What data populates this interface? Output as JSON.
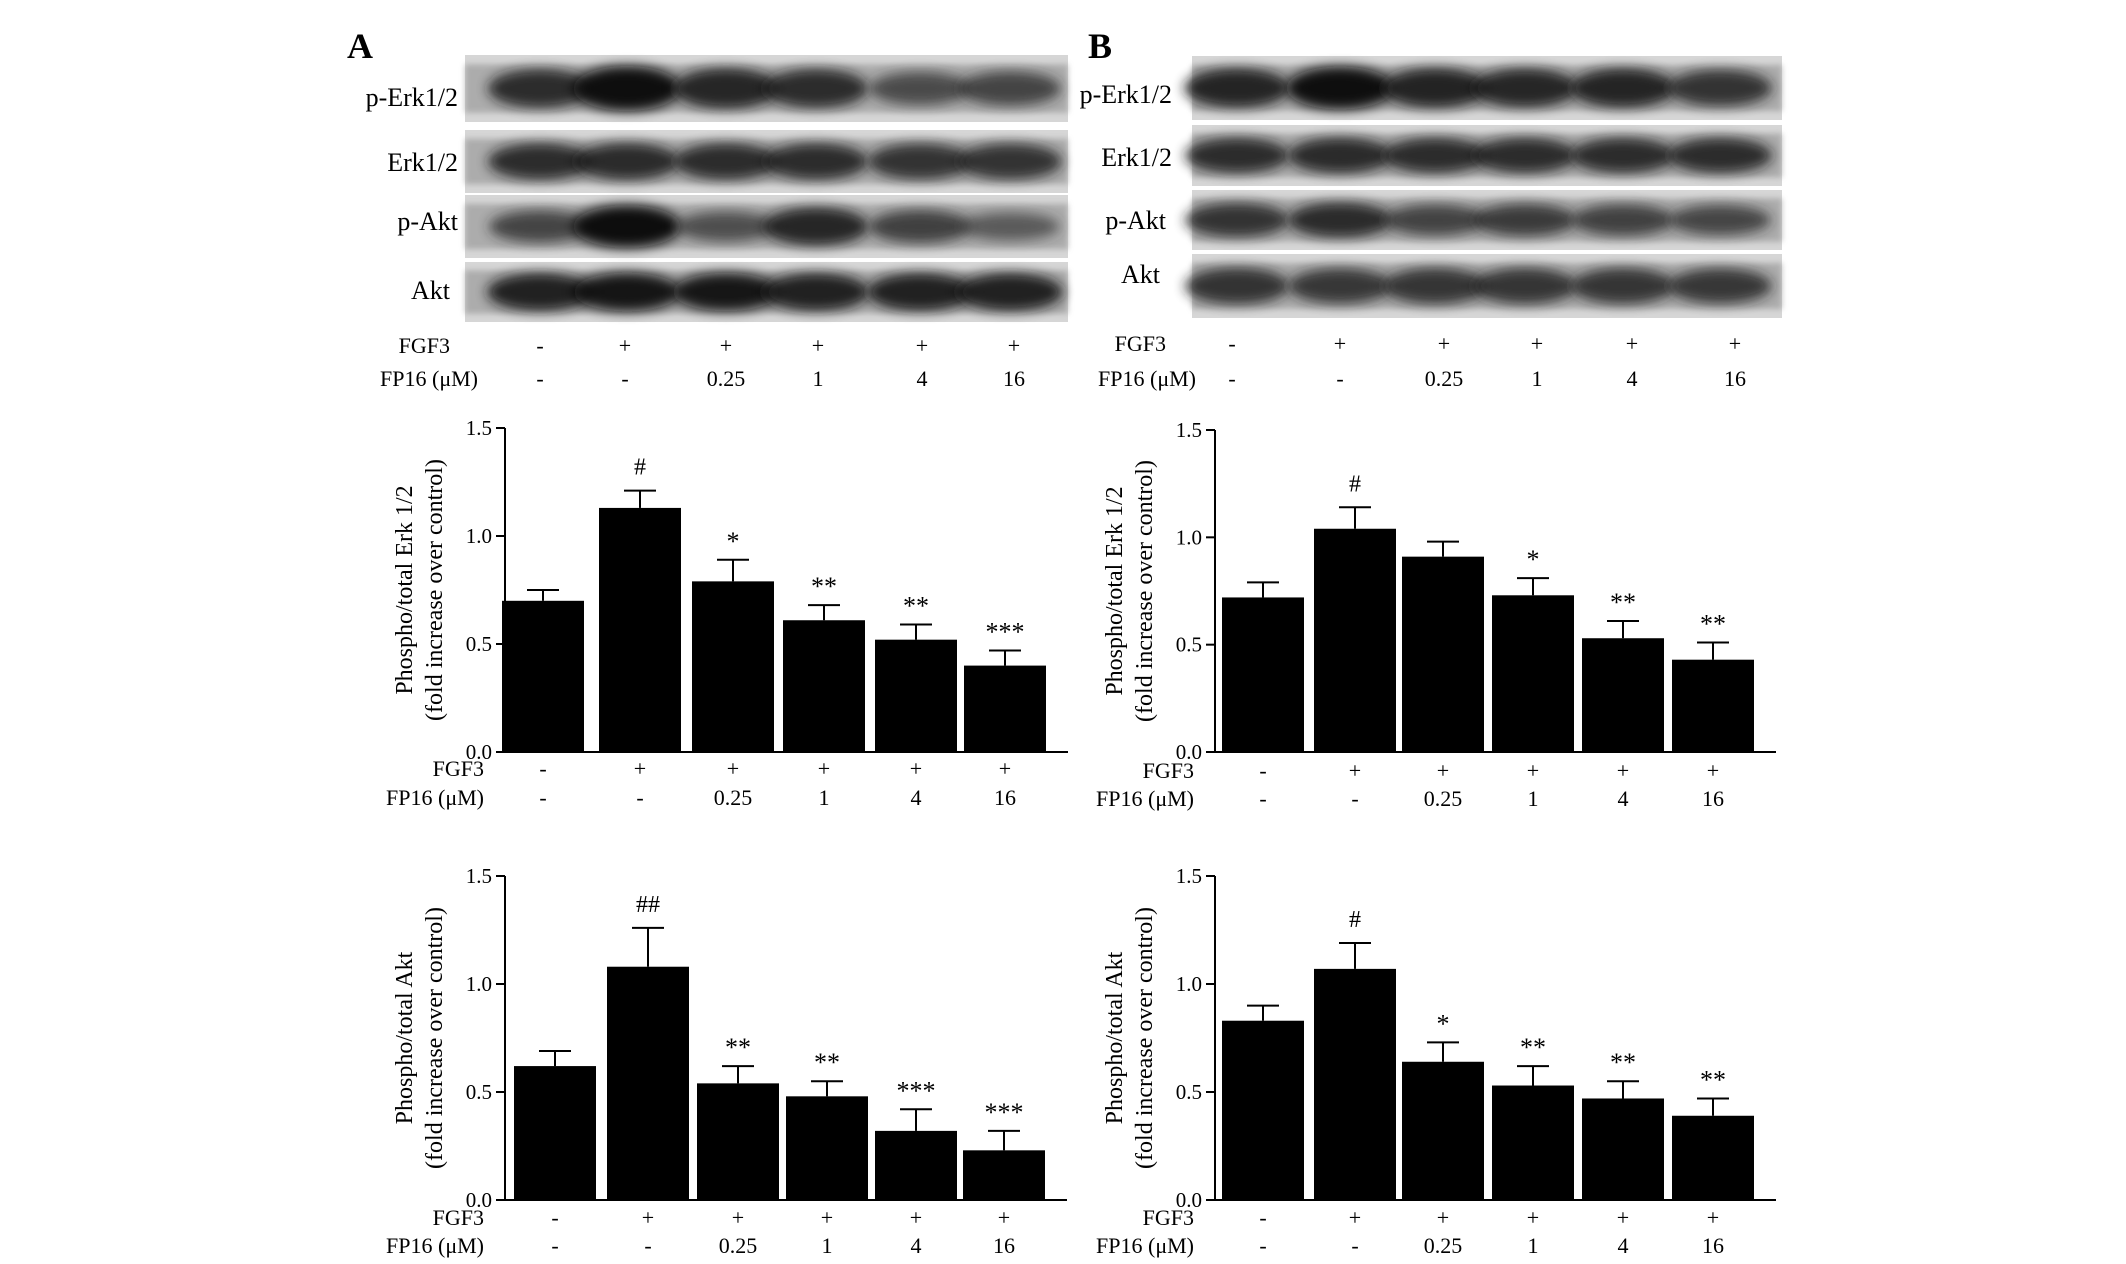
{
  "panels": [
    {
      "label": "A",
      "blot_labels": [
        "p-Erk1/2",
        "Erk1/2",
        "p-Akt",
        "Akt"
      ],
      "blot_intensity": [
        [
          0.7,
          0.98,
          0.78,
          0.7,
          0.45,
          0.5
        ],
        [
          0.7,
          0.72,
          0.7,
          0.7,
          0.68,
          0.68
        ],
        [
          0.5,
          1.0,
          0.4,
          0.78,
          0.55,
          0.3
        ],
        [
          0.85,
          0.9,
          0.88,
          0.85,
          0.85,
          0.85
        ]
      ],
      "conditions": {
        "fgf3_label": "FGF3",
        "fgf3": [
          "-",
          "+",
          "+",
          "+",
          "+",
          "+"
        ],
        "fp16_label": "FP16 (μM)",
        "fp16": [
          "-",
          "-",
          "0.25",
          "1",
          "4",
          "16"
        ]
      }
    },
    {
      "label": "B",
      "blot_labels": [
        "p-Erk1/2",
        "Erk1/2",
        "p-Akt",
        "Akt"
      ],
      "blot_intensity": [
        [
          0.8,
          0.98,
          0.82,
          0.78,
          0.8,
          0.68
        ],
        [
          0.7,
          0.72,
          0.7,
          0.7,
          0.7,
          0.7
        ],
        [
          0.68,
          0.72,
          0.52,
          0.58,
          0.55,
          0.48
        ],
        [
          0.68,
          0.62,
          0.65,
          0.65,
          0.65,
          0.62
        ]
      ],
      "conditions": {
        "fgf3_label": "FGF3",
        "fgf3": [
          "-",
          "+",
          "+",
          "+",
          "+",
          "+"
        ],
        "fp16_label": "FP16 (μM)",
        "fp16": [
          "-",
          "-",
          "0.25",
          "1",
          "4",
          "16"
        ]
      }
    }
  ],
  "chart_data": [
    {
      "id": "A-erk",
      "type": "bar",
      "categories": [
        "1",
        "2",
        "3",
        "4",
        "5",
        "6"
      ],
      "values": [
        0.7,
        1.13,
        0.79,
        0.61,
        0.52,
        0.4
      ],
      "errors": [
        0.05,
        0.08,
        0.1,
        0.07,
        0.07,
        0.07
      ],
      "annotations": [
        "",
        "#",
        "*",
        "**",
        "**",
        "***"
      ],
      "ylabel": [
        "Phospho/total Erk 1/2",
        "(fold increase over control)"
      ],
      "ylim": [
        0,
        1.5
      ],
      "yticks": [
        "0.0",
        "0.5",
        "1.0",
        "1.5"
      ],
      "xrows": [
        {
          "label": "FGF3",
          "values": [
            "-",
            "+",
            "+",
            "+",
            "+",
            "+"
          ]
        },
        {
          "label": "FP16 (μM)",
          "values": [
            "-",
            "-",
            "0.25",
            "1",
            "4",
            "16"
          ]
        }
      ]
    },
    {
      "id": "B-erk",
      "type": "bar",
      "categories": [
        "1",
        "2",
        "3",
        "4",
        "5",
        "6"
      ],
      "values": [
        0.72,
        1.04,
        0.91,
        0.73,
        0.53,
        0.43
      ],
      "errors": [
        0.07,
        0.1,
        0.07,
        0.08,
        0.08,
        0.08
      ],
      "annotations": [
        "",
        "#",
        "",
        "*",
        "**",
        "**"
      ],
      "ylabel": [
        "Phospho/total Erk 1/2",
        "(fold increase over control)"
      ],
      "ylim": [
        0,
        1.5
      ],
      "yticks": [
        "0.0",
        "0.5",
        "1.0",
        "1.5"
      ],
      "xrows": [
        {
          "label": "FGF3",
          "values": [
            "-",
            "+",
            "+",
            "+",
            "+",
            "+"
          ]
        },
        {
          "label": "FP16 (μM)",
          "values": [
            "-",
            "-",
            "0.25",
            "1",
            "4",
            "16"
          ]
        }
      ]
    },
    {
      "id": "A-akt",
      "type": "bar",
      "categories": [
        "1",
        "2",
        "3",
        "4",
        "5",
        "6"
      ],
      "values": [
        0.62,
        1.08,
        0.54,
        0.48,
        0.32,
        0.23
      ],
      "errors": [
        0.07,
        0.18,
        0.08,
        0.07,
        0.1,
        0.09
      ],
      "annotations": [
        "",
        "##",
        "**",
        "**",
        "***",
        "***"
      ],
      "ylabel": [
        "Phospho/total Akt",
        "(fold increase over control)"
      ],
      "ylim": [
        0,
        1.5
      ],
      "yticks": [
        "0.0",
        "0.5",
        "1.0",
        "1.5"
      ],
      "xrows": [
        {
          "label": "FGF3",
          "values": [
            "-",
            "+",
            "+",
            "+",
            "+",
            "+"
          ]
        },
        {
          "label": "FP16 (μM)",
          "values": [
            "-",
            "-",
            "0.25",
            "1",
            "4",
            "16"
          ]
        }
      ]
    },
    {
      "id": "B-akt",
      "type": "bar",
      "categories": [
        "1",
        "2",
        "3",
        "4",
        "5",
        "6"
      ],
      "values": [
        0.83,
        1.07,
        0.64,
        0.53,
        0.47,
        0.39
      ],
      "errors": [
        0.07,
        0.12,
        0.09,
        0.09,
        0.08,
        0.08
      ],
      "annotations": [
        "",
        "#",
        "*",
        "**",
        "**",
        "**"
      ],
      "ylabel": [
        "Phospho/total Akt",
        "(fold increase over control)"
      ],
      "ylim": [
        0,
        1.5
      ],
      "yticks": [
        "0.0",
        "0.5",
        "1.0",
        "1.5"
      ],
      "xrows": [
        {
          "label": "FGF3",
          "values": [
            "-",
            "+",
            "+",
            "+",
            "+",
            "+"
          ]
        },
        {
          "label": "FP16 (μM)",
          "values": [
            "-",
            "-",
            "0.25",
            "1",
            "4",
            "16"
          ]
        }
      ]
    }
  ]
}
